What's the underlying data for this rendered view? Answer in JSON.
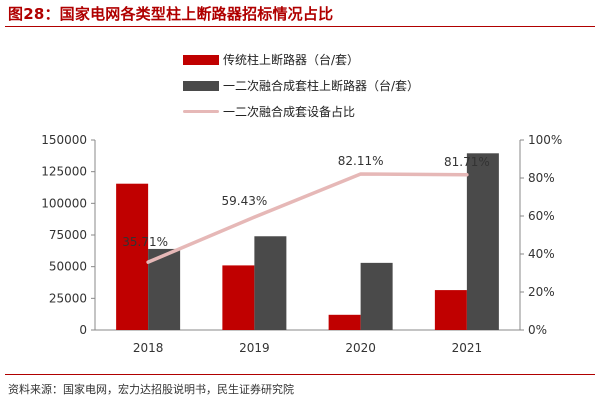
{
  "header": {
    "title": "图28：国家电网各类型柱上断路器招标情况占比"
  },
  "footer": {
    "source": "资料来源：国家电网，宏力达招股说明书，民生证券研究院"
  },
  "colors": {
    "red": "#c00000",
    "gray": "#4a4a4a",
    "line": "#e6b8b7",
    "accent": "#b00000"
  },
  "chart_data": {
    "type": "bar",
    "categories": [
      "2018",
      "2019",
      "2020",
      "2021"
    ],
    "series": [
      {
        "name": "传统柱上断路器（台/套）",
        "kind": "bar",
        "axis": "left",
        "values": [
          115500,
          51000,
          12000,
          31500
        ]
      },
      {
        "name": "一二次融合成套柱上断路器（台/套）",
        "kind": "bar",
        "axis": "left",
        "values": [
          64000,
          74000,
          53000,
          139500
        ]
      },
      {
        "name": "一二次融合成套设备占比",
        "kind": "line",
        "axis": "right",
        "values": [
          35.71,
          59.43,
          82.11,
          81.71
        ],
        "labels": [
          "35.71%",
          "59.43%",
          "82.11%",
          "81.71%"
        ]
      }
    ],
    "y_left": {
      "ylim": [
        0,
        150000
      ],
      "ticks": [
        "0",
        "25000",
        "50000",
        "75000",
        "100000",
        "125000",
        "150000"
      ]
    },
    "y_right": {
      "ylim": [
        0,
        100
      ],
      "ticks": [
        "0%",
        "20%",
        "40%",
        "60%",
        "80%",
        "100%"
      ]
    },
    "legend": "top"
  }
}
